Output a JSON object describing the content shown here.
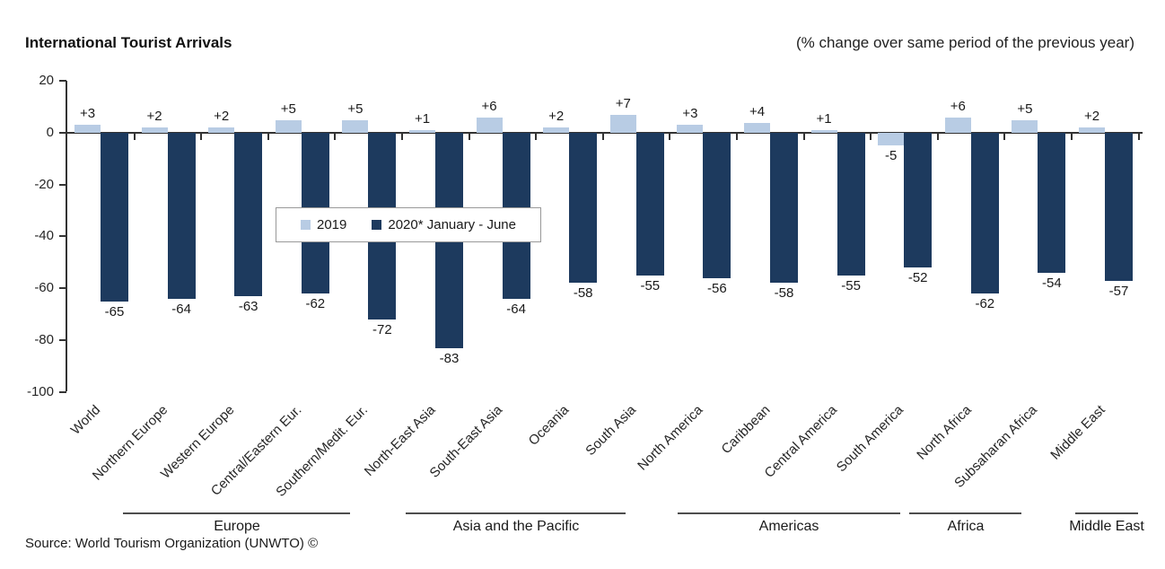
{
  "header": {
    "title": "International Tourist Arrivals",
    "subtitle": "(% change over same period of the previous year)"
  },
  "footer": {
    "source": "Source: World Tourism Organization (UNWTO) ©"
  },
  "chart_data": {
    "type": "bar",
    "title": "International Tourist Arrivals",
    "subtitle": "(% change over same period of the previous year)",
    "categories": [
      "World",
      "Northern Europe",
      "Western Europe",
      "Central/Eastern Eur.",
      "Southern/Medit. Eur.",
      "North-East Asia",
      "South-East Asia",
      "Oceania",
      "South Asia",
      "North America",
      "Caribbean",
      "Central America",
      "South America",
      "North Africa",
      "Subsaharan Africa",
      "Middle East"
    ],
    "series": [
      {
        "name": "2019",
        "color": "#b8cce4",
        "values": [
          3,
          2,
          2,
          5,
          5,
          1,
          6,
          2,
          7,
          3,
          4,
          1,
          -5,
          6,
          5,
          2
        ]
      },
      {
        "name": "2020* January - June",
        "color": "#1d3a5e",
        "values": [
          -65,
          -64,
          -63,
          -62,
          -72,
          -83,
          -64,
          -58,
          -55,
          -56,
          -58,
          -55,
          -52,
          -62,
          -54,
          -57
        ]
      }
    ],
    "y_axis": {
      "ticks": [
        20,
        0,
        -20,
        -40,
        -60,
        -80,
        -100
      ],
      "min": -100,
      "max": 20
    },
    "xlabel": "",
    "ylabel": "",
    "grid": false,
    "legend_position": "inside-middle-left",
    "region_groups": [
      {
        "label": "Europe",
        "categories": [
          "Northern Europe",
          "Western Europe",
          "Central/Eastern Eur.",
          "Southern/Medit. Eur."
        ]
      },
      {
        "label": "Asia and the Pacific",
        "categories": [
          "North-East Asia",
          "South-East Asia",
          "Oceania",
          "South Asia"
        ]
      },
      {
        "label": "Americas",
        "categories": [
          "North America",
          "Caribbean",
          "Central America",
          "South America"
        ]
      },
      {
        "label": "Africa",
        "categories": [
          "North Africa",
          "Subsaharan Africa"
        ]
      },
      {
        "label": "Middle East",
        "categories": [
          "Middle East"
        ]
      }
    ],
    "source": "Source: World Tourism Organization (UNWTO) ©"
  }
}
